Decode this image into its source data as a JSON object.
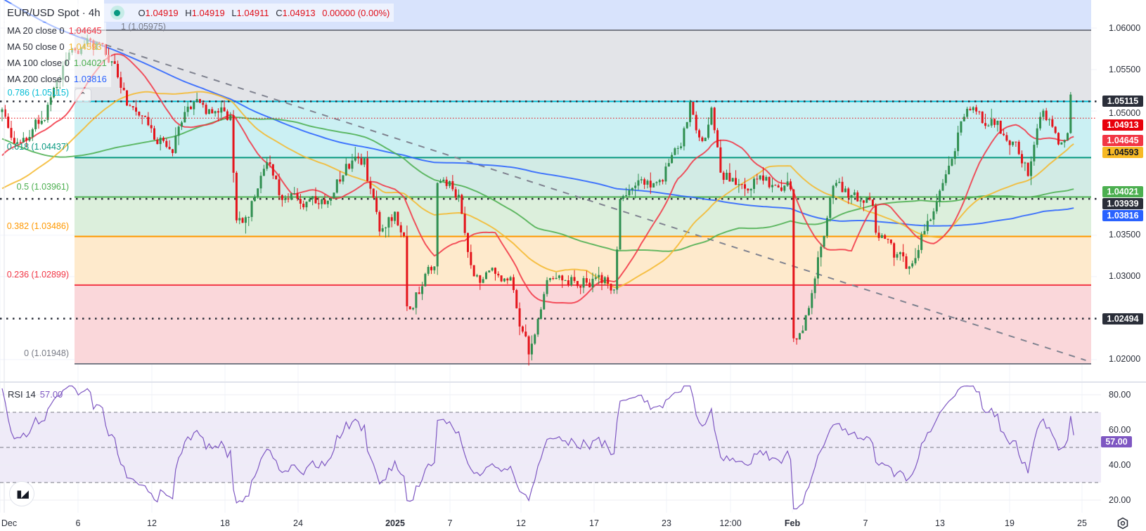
{
  "header": {
    "title": "EUR/USD Spot · 4h",
    "ohlc": {
      "o_key": "O",
      "o": "1.04919",
      "h_key": "H",
      "h": "1.04919",
      "l_key": "L",
      "l": "1.04911",
      "c_key": "C",
      "c": "1.04913",
      "change": "0.00000 (0.00%)"
    },
    "status_color": "#089981"
  },
  "indicators": [
    {
      "label": "MA 20 close 0",
      "value": "1.04645",
      "color": "#f23645",
      "period": 20
    },
    {
      "label": "MA 50 close 0",
      "value": "1.04593",
      "color": "#f5b82e",
      "period": 50
    },
    {
      "label": "MA 100 close 0",
      "value": "1.04021",
      "color": "#4caf50",
      "period": 100
    },
    {
      "label": "MA 200 close 0",
      "value": "1.03816",
      "color": "#2962ff",
      "period": 200
    }
  ],
  "fib_levels": [
    {
      "ratio": 1,
      "price": 1.05975,
      "label": "1 (1.05975)",
      "color": "#787b86",
      "fill": "#e3e4e8"
    },
    {
      "ratio": 0.786,
      "price": 1.05115,
      "label": "0.786 (1.05115)",
      "color": "#00bcd4",
      "fill": "#cbf0f3"
    },
    {
      "ratio": 0.618,
      "price": 1.04437,
      "label": "0.618 (1.04437)",
      "color": "#089981",
      "fill": "#d2ebe5"
    },
    {
      "ratio": 0.5,
      "price": 1.03961,
      "label": "0.5 (1.03961)",
      "color": "#4caf50",
      "fill": "#dcefdc"
    },
    {
      "ratio": 0.382,
      "price": 1.03486,
      "label": "0.382 (1.03486)",
      "color": "#ff9800",
      "fill": "#feeacc"
    },
    {
      "ratio": 0.236,
      "price": 1.02899,
      "label": "0.236 (1.02899)",
      "color": "#f23645",
      "fill": "#fad7da"
    },
    {
      "ratio": 0,
      "price": 1.01948,
      "label": "0 (1.01948)",
      "color": "#787b86"
    }
  ],
  "fib_extension_fill": "#d8e3fc",
  "price_axis": {
    "ticks": [
      "1.06000",
      "1.05500",
      "1.05000",
      "1.03500",
      "1.03000",
      "1.02000"
    ],
    "badges": [
      {
        "value": "1.05115",
        "bg": "#2a2e39",
        "fg": "#ffffff"
      },
      {
        "value": "1.04913",
        "bg": "#e8000b",
        "fg": "#ffffff"
      },
      {
        "value": "1.04645",
        "bg": "#f23645",
        "fg": "#ffffff"
      },
      {
        "value": "1.04593",
        "bg": "#f7b924",
        "fg": "#131722"
      },
      {
        "value": "1.04021",
        "bg": "#4caf50",
        "fg": "#ffffff"
      },
      {
        "value": "1.03939",
        "bg": "#2a2e39",
        "fg": "#ffffff"
      },
      {
        "value": "1.03816",
        "bg": "#2962ff",
        "fg": "#ffffff"
      },
      {
        "value": "1.02494",
        "bg": "#2a2e39",
        "fg": "#ffffff"
      }
    ]
  },
  "time_axis": {
    "labels": [
      "Dec",
      "6",
      "12",
      "18",
      "24",
      "2025",
      "7",
      "12",
      "17",
      "23",
      "12:00",
      "Feb",
      "7",
      "13",
      "19",
      "25"
    ]
  },
  "rsi": {
    "label": "RSI 14",
    "value": "57.00",
    "ticks": [
      "80.00",
      "60.00",
      "40.00",
      "20.00"
    ],
    "upper": 70,
    "middle": 50,
    "lower": 30,
    "color": "#7e57c2",
    "band_fill": "#efebf8"
  },
  "logo_text": "TV",
  "chart_data": {
    "type": "candlestick",
    "symbol": "EUR/USD Spot",
    "timeframe": "4h",
    "ylim": [
      1.01727,
      1.0634
    ],
    "up_color": "#2f8f50",
    "down_color": "#e4141b",
    "current_price": 1.04913,
    "last_bar": {
      "open": 1.04919,
      "high": 1.04919,
      "low": 1.04911,
      "close": 1.04913
    },
    "dotted_levels": [
      1.05115,
      1.03939,
      1.02494
    ],
    "trendline": [
      [
        22,
        1.0594
      ],
      [
        356,
        1.0199
      ]
    ],
    "close_path": [
      [
        0,
        1.05
      ],
      [
        5,
        1.0464
      ],
      [
        13,
        1.049
      ],
      [
        22,
        1.057
      ],
      [
        29,
        1.0585
      ],
      [
        36,
        1.056
      ],
      [
        41,
        1.0505
      ],
      [
        49,
        1.048
      ],
      [
        55,
        1.0456
      ],
      [
        62,
        1.05
      ],
      [
        75,
        1.0495
      ],
      [
        77,
        1.037
      ],
      [
        79,
        1.0365
      ],
      [
        88,
        1.0435
      ],
      [
        92,
        1.0395
      ],
      [
        105,
        1.0395
      ],
      [
        115,
        1.044
      ],
      [
        119,
        1.0445
      ],
      [
        124,
        1.0355
      ],
      [
        129,
        1.038
      ],
      [
        132,
        1.035
      ],
      [
        133,
        1.0265
      ],
      [
        142,
        1.0314
      ],
      [
        143,
        1.0415
      ],
      [
        150,
        1.04
      ],
      [
        153,
        1.033
      ],
      [
        155,
        1.03
      ],
      [
        167,
        1.03
      ],
      [
        170,
        1.024
      ],
      [
        173,
        1.0205
      ],
      [
        180,
        1.0295
      ],
      [
        195,
        1.03
      ],
      [
        201,
        1.0285
      ],
      [
        203,
        1.0395
      ],
      [
        215,
        1.0415
      ],
      [
        223,
        1.0456
      ],
      [
        226,
        1.051
      ],
      [
        230,
        1.0465
      ],
      [
        233,
        1.0505
      ],
      [
        236,
        1.0425
      ],
      [
        253,
        1.041
      ],
      [
        259,
        1.0405
      ],
      [
        260,
        1.0225
      ],
      [
        263,
        1.0235
      ],
      [
        268,
        1.0323
      ],
      [
        273,
        1.0408
      ],
      [
        286,
        1.0386
      ],
      [
        287,
        1.0352
      ],
      [
        297,
        1.0309
      ],
      [
        306,
        1.038
      ],
      [
        317,
        1.0504
      ],
      [
        326,
        1.0481
      ],
      [
        334,
        1.0445
      ],
      [
        337,
        1.0422
      ],
      [
        342,
        1.05
      ],
      [
        347,
        1.0458
      ],
      [
        350,
        1.0473
      ],
      [
        351,
        1.0518
      ],
      [
        352,
        1.04913
      ]
    ],
    "rsi_levels": [
      70,
      50,
      30
    ],
    "rsi_last": 57.0
  }
}
